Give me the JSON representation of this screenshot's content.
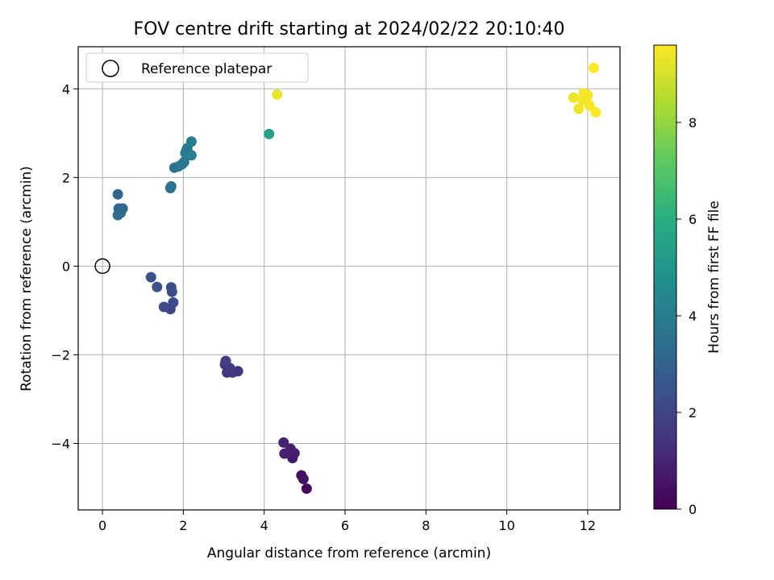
{
  "chart_data": {
    "type": "scatter",
    "title": "FOV centre drift starting at 2024/02/22 20:10:40",
    "xlabel": "Angular distance from reference (arcmin)",
    "ylabel": "Rotation from reference (arcmin)",
    "xlim": [
      -0.6,
      12.8
    ],
    "ylim": [
      -5.5,
      4.95
    ],
    "xticks": [
      0,
      2,
      4,
      6,
      8,
      10,
      12
    ],
    "yticks": [
      -4,
      -2,
      0,
      2,
      4
    ],
    "xtick_labels": [
      "0",
      "2",
      "4",
      "6",
      "8",
      "10",
      "12"
    ],
    "ytick_labels": [
      "−4",
      "−2",
      "0",
      "2",
      "4"
    ],
    "grid": true,
    "legend": {
      "position": "top-left",
      "entries": [
        {
          "label": "Reference platepar",
          "marker": "hollow-circle"
        }
      ]
    },
    "reference": {
      "x": 0,
      "y": 0
    },
    "colorbar": {
      "label": "Hours from first FF file",
      "colormap": "viridis",
      "range": [
        0,
        9.6
      ],
      "ticks": [
        0,
        2,
        4,
        6,
        8
      ],
      "tick_labels": [
        "0",
        "2",
        "4",
        "6",
        "8"
      ]
    },
    "points": [
      {
        "x": 5.05,
        "y": -5.02,
        "c": 0.2
      },
      {
        "x": 4.97,
        "y": -4.8,
        "c": 0.35
      },
      {
        "x": 4.92,
        "y": -4.72,
        "c": 0.4
      },
      {
        "x": 4.7,
        "y": -4.33,
        "c": 0.7
      },
      {
        "x": 4.75,
        "y": -4.22,
        "c": 0.75
      },
      {
        "x": 4.58,
        "y": -4.22,
        "c": 0.8
      },
      {
        "x": 4.65,
        "y": -4.12,
        "c": 0.85
      },
      {
        "x": 4.5,
        "y": -4.23,
        "c": 0.9
      },
      {
        "x": 4.48,
        "y": -3.98,
        "c": 0.95
      },
      {
        "x": 3.35,
        "y": -2.37,
        "c": 1.5
      },
      {
        "x": 3.22,
        "y": -2.4,
        "c": 1.55
      },
      {
        "x": 3.08,
        "y": -2.4,
        "c": 1.6
      },
      {
        "x": 3.15,
        "y": -2.3,
        "c": 1.65
      },
      {
        "x": 3.03,
        "y": -2.22,
        "c": 1.7
      },
      {
        "x": 3.05,
        "y": -2.14,
        "c": 1.75
      },
      {
        "x": 1.68,
        "y": -0.97,
        "c": 2.1
      },
      {
        "x": 1.52,
        "y": -0.92,
        "c": 2.15
      },
      {
        "x": 1.75,
        "y": -0.82,
        "c": 2.2
      },
      {
        "x": 1.72,
        "y": -0.58,
        "c": 2.25
      },
      {
        "x": 1.7,
        "y": -0.48,
        "c": 2.3
      },
      {
        "x": 1.35,
        "y": -0.47,
        "c": 2.4
      },
      {
        "x": 1.2,
        "y": -0.25,
        "c": 2.5
      },
      {
        "x": 0.38,
        "y": 1.62,
        "c": 3.2
      },
      {
        "x": 0.4,
        "y": 1.3,
        "c": 3.25
      },
      {
        "x": 0.5,
        "y": 1.3,
        "c": 3.3
      },
      {
        "x": 0.45,
        "y": 1.2,
        "c": 3.35
      },
      {
        "x": 0.38,
        "y": 1.15,
        "c": 3.4
      },
      {
        "x": 1.68,
        "y": 1.76,
        "c": 3.6
      },
      {
        "x": 1.7,
        "y": 1.8,
        "c": 3.62
      },
      {
        "x": 1.78,
        "y": 2.22,
        "c": 3.7
      },
      {
        "x": 1.88,
        "y": 2.25,
        "c": 3.75
      },
      {
        "x": 1.97,
        "y": 2.3,
        "c": 3.8
      },
      {
        "x": 2.02,
        "y": 2.35,
        "c": 3.85
      },
      {
        "x": 2.05,
        "y": 2.55,
        "c": 3.9
      },
      {
        "x": 2.08,
        "y": 2.62,
        "c": 3.95
      },
      {
        "x": 2.1,
        "y": 2.66,
        "c": 4.0
      },
      {
        "x": 2.2,
        "y": 2.5,
        "c": 4.05
      },
      {
        "x": 2.2,
        "y": 2.81,
        "c": 4.1
      },
      {
        "x": 4.12,
        "y": 2.98,
        "c": 5.5
      },
      {
        "x": 4.32,
        "y": 3.87,
        "c": 9.3
      },
      {
        "x": 11.65,
        "y": 3.8,
        "c": 9.35
      },
      {
        "x": 11.78,
        "y": 3.55,
        "c": 9.4
      },
      {
        "x": 11.88,
        "y": 3.75,
        "c": 9.42
      },
      {
        "x": 11.9,
        "y": 3.9,
        "c": 9.45
      },
      {
        "x": 11.98,
        "y": 3.82,
        "c": 9.47
      },
      {
        "x": 12.0,
        "y": 3.86,
        "c": 9.5
      },
      {
        "x": 12.05,
        "y": 3.62,
        "c": 9.52
      },
      {
        "x": 12.2,
        "y": 3.47,
        "c": 9.55
      },
      {
        "x": 12.15,
        "y": 4.47,
        "c": 9.58
      }
    ]
  }
}
